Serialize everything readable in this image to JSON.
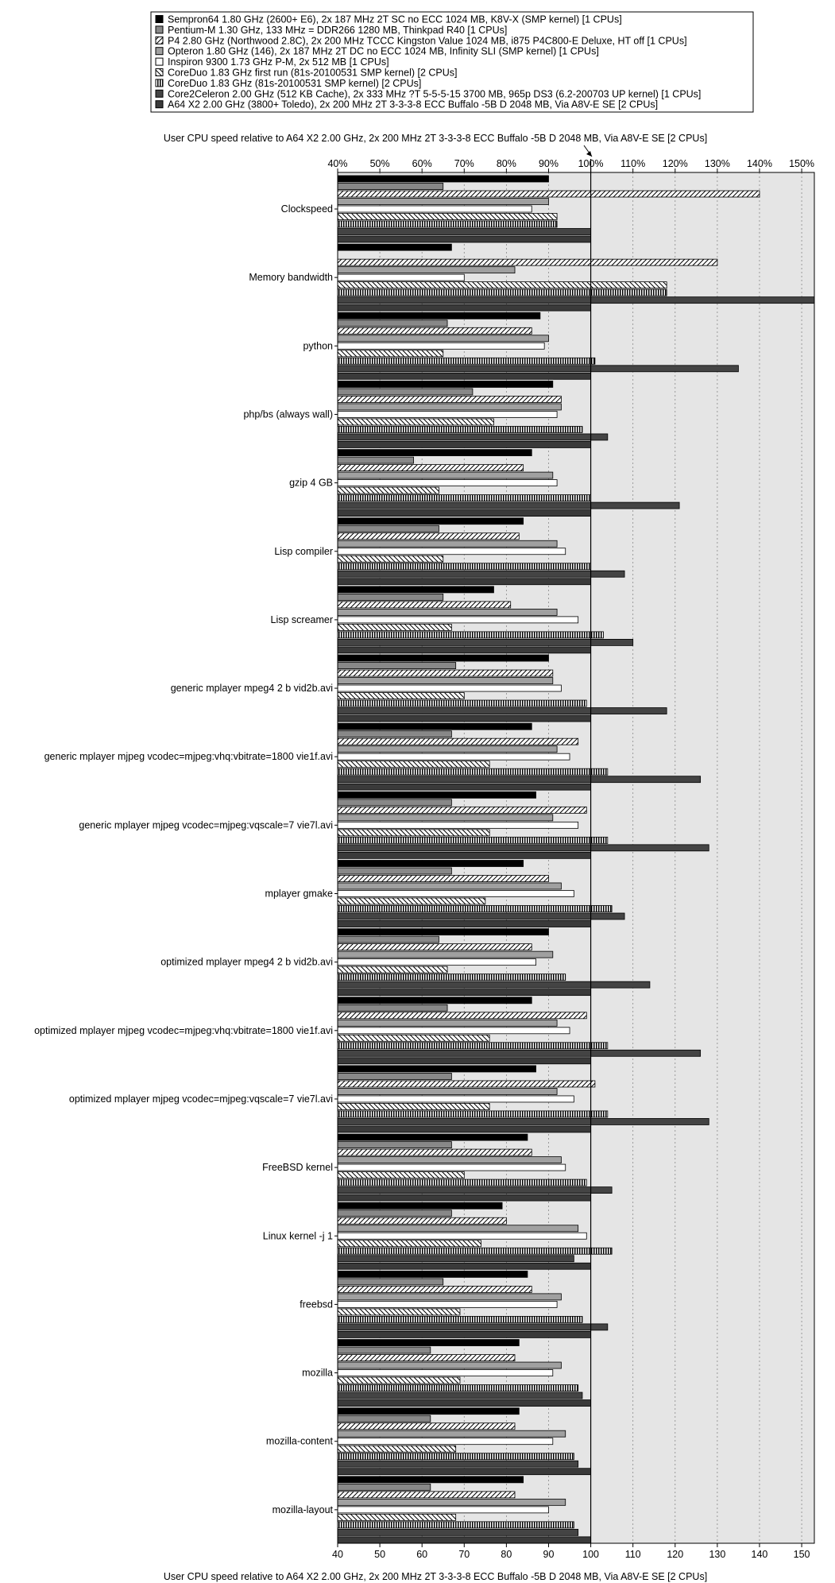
{
  "chart_data": {
    "type": "bar",
    "orientation": "horizontal",
    "title": "User CPU speed relative to A64 X2 2.00 GHz, 2x 200 MHz 2T 3-3-3-8 ECC Buffalo -5B D 2048 MB, Via A8V-E SE [2 CPUs]",
    "xlabel": "User CPU speed relative to A64 X2 2.00 GHz, 2x 200 MHz 2T 3-3-3-8 ECC Buffalo -5B D 2048 MB, Via A8V-E SE [2 CPUs]",
    "xlim": [
      40,
      153
    ],
    "reference_line": 100,
    "top_ticks": [
      "40%",
      "50%",
      "60%",
      "70%",
      "80%",
      "90%",
      "100%",
      "110%",
      "120%",
      "130%",
      "140%",
      "150%"
    ],
    "bottom_ticks": [
      "40",
      "50",
      "60",
      "70",
      "80",
      "90",
      "100",
      "110",
      "120",
      "130",
      "140",
      "150"
    ],
    "legend_position": "top",
    "grid": true,
    "categories": [
      "Clockspeed",
      "Memory bandwidth",
      "python",
      "php/bs (always wall)",
      "gzip 4 GB",
      "Lisp compiler",
      "Lisp screamer",
      "generic mplayer mpeg4 2 b vid2b.avi",
      "generic mplayer mjpeg vcodec=mjpeg:vhq:vbitrate=1800 vie1f.avi",
      "generic mplayer mjpeg vcodec=mjpeg:vqscale=7 vie7l.avi",
      "mplayer gmake",
      "optimized mplayer mpeg4 2 b vid2b.avi",
      "optimized mplayer mjpeg vcodec=mjpeg:vhq:vbitrate=1800 vie1f.avi",
      "optimized mplayer mjpeg vcodec=mjpeg:vqscale=7 vie7l.avi",
      "FreeBSD kernel",
      "Linux kernel -j 1",
      "freebsd",
      "mozilla",
      "mozilla-content",
      "mozilla-layout"
    ],
    "series": [
      {
        "name": "Sempron64 1.80 GHz (2600+ E6), 2x 187 MHz 2T SC no ECC 1024 MB, K8V-X (SMP kernel) [1 CPUs]",
        "pattern": "black",
        "values": [
          90,
          67,
          88,
          91,
          86,
          84,
          77,
          90,
          86,
          87,
          84,
          90,
          86,
          87,
          85,
          79,
          85,
          83,
          83,
          84
        ]
      },
      {
        "name": "Pentium-M 1.30 GHz, 133 MHz = DDR266 1280 MB, Thinkpad R40 [1 CPUs]",
        "pattern": "darkgray",
        "values": [
          65,
          40,
          66,
          72,
          58,
          64,
          65,
          68,
          67,
          67,
          67,
          64,
          66,
          67,
          67,
          67,
          65,
          62,
          62,
          62
        ]
      },
      {
        "name": "P4 2.80 GHz (Northwood 2.8C), 2x 200 MHz TCCC Kingston Value 1024 MB, i875 P4C800-E Deluxe, HT off [1 CPUs]",
        "pattern": "hatch",
        "values": [
          140,
          130,
          86,
          93,
          84,
          83,
          81,
          91,
          97,
          99,
          90,
          86,
          99,
          101,
          86,
          80,
          86,
          82,
          82,
          82
        ]
      },
      {
        "name": "Opteron 1.80 GHz (146), 2x 187 MHz 2T DC no ECC 1024 MB, Infinity SLI (SMP kernel) [1 CPUs]",
        "pattern": "midgray",
        "values": [
          90,
          82,
          90,
          93,
          91,
          92,
          92,
          91,
          92,
          91,
          93,
          91,
          92,
          92,
          93,
          97,
          93,
          93,
          94,
          94
        ]
      },
      {
        "name": "Inspiron 9300 1.73 GHz P-M, 2x 512 MB [1 CPUs]",
        "pattern": "white",
        "values": [
          86,
          70,
          89,
          92,
          92,
          94,
          97,
          93,
          95,
          97,
          96,
          87,
          95,
          96,
          94,
          99,
          92,
          91,
          91,
          90
        ]
      },
      {
        "name": "CoreDuo 1.83 GHz first run (81s-20100531 SMP kernel) [2 CPUs]",
        "pattern": "backhatch",
        "values": [
          92,
          118,
          65,
          77,
          64,
          65,
          67,
          70,
          76,
          76,
          75,
          66,
          76,
          76,
          70,
          74,
          69,
          69,
          68,
          68
        ]
      },
      {
        "name": "CoreDuo 1.83 GHz (81s-20100531 SMP kernel) [2 CPUs]",
        "pattern": "vstripes",
        "values": [
          92,
          118,
          101,
          98,
          100,
          100,
          103,
          99,
          104,
          104,
          105,
          94,
          104,
          104,
          99,
          105,
          98,
          97,
          96,
          96
        ]
      },
      {
        "name": "Core2Celeron 2.00 GHz (512 KB Cache), 2x 333 MHz ?T 5-5-5-15 3700 MB, 965p DS3 (6.2-200703 UP kernel) [1 CPUs]",
        "pattern": "charcoal",
        "values": [
          100,
          153,
          135,
          104,
          121,
          108,
          110,
          118,
          126,
          128,
          108,
          114,
          126,
          128,
          105,
          96,
          104,
          98,
          97,
          97
        ]
      },
      {
        "name": "A64 X2 2.00 GHz (3800+ Toledo), 2x 200 MHz 2T 3-3-3-8 ECC Buffalo -5B D 2048 MB, Via A8V-E SE [2 CPUs]",
        "pattern": "dark",
        "values": [
          100,
          100,
          100,
          100,
          100,
          100,
          100,
          100,
          100,
          100,
          100,
          100,
          100,
          100,
          100,
          100,
          100,
          100,
          100,
          100
        ]
      }
    ]
  }
}
